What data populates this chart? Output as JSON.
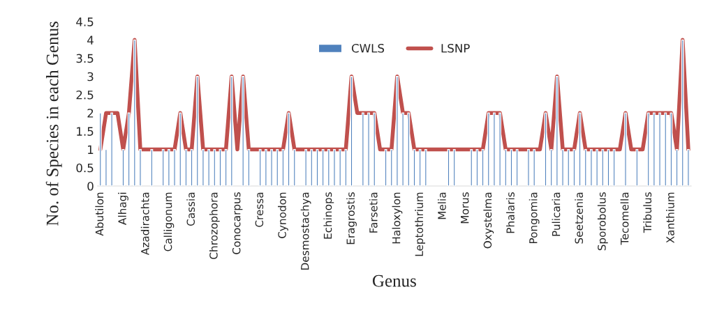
{
  "chart_data": {
    "type": "bar",
    "xlabel": "Genus",
    "ylabel": "No. of Species in each Genus",
    "categories": [
      "Abutilon",
      null,
      null,
      null,
      "Alhagi",
      null,
      null,
      null,
      "Azadirachta",
      null,
      null,
      null,
      "Calligonum",
      null,
      null,
      null,
      "Cassia",
      null,
      null,
      null,
      "Chrozophora",
      null,
      null,
      null,
      "Conocarpus",
      null,
      null,
      null,
      "Cressa",
      null,
      null,
      null,
      "Cynodon",
      null,
      null,
      null,
      "Desmostachya",
      null,
      null,
      null,
      "Echinops",
      null,
      null,
      null,
      "Eragrostis",
      null,
      null,
      null,
      "Farsetia",
      null,
      null,
      null,
      "Haloxylon",
      null,
      null,
      null,
      "Leptothrium",
      null,
      null,
      null,
      "Melia",
      null,
      null,
      null,
      "Morus",
      null,
      null,
      null,
      "Oxystelma",
      null,
      null,
      null,
      "Phalaris",
      null,
      null,
      null,
      "Pongomia",
      null,
      null,
      null,
      "Pulicaria",
      null,
      null,
      null,
      "Seetzenia",
      null,
      null,
      null,
      "Sporobolus",
      null,
      null,
      null,
      "Tecomella",
      null,
      null,
      null,
      "Tribulus",
      null,
      null,
      null,
      "Xanthium",
      null,
      null,
      null
    ],
    "series": [
      {
        "name": "CWLS",
        "color": "#4f81bd",
        "values": [
          2,
          1,
          2,
          null,
          1,
          2,
          4,
          1,
          null,
          1,
          null,
          1,
          1,
          1,
          2,
          1,
          1,
          3,
          1,
          1,
          1,
          1,
          1,
          3,
          null,
          3,
          1,
          null,
          1,
          1,
          1,
          1,
          1,
          2,
          1,
          null,
          1,
          1,
          1,
          1,
          1,
          1,
          1,
          1,
          3,
          null,
          2,
          2,
          2,
          null,
          1,
          1,
          3,
          2,
          2,
          1,
          1,
          1,
          null,
          null,
          null,
          1,
          1,
          null,
          null,
          1,
          1,
          1,
          2,
          2,
          2,
          1,
          1,
          1,
          null,
          1,
          1,
          null,
          2,
          1,
          3,
          1,
          1,
          1,
          2,
          1,
          1,
          1,
          1,
          1,
          1,
          null,
          2,
          null,
          1,
          null,
          2,
          2,
          2,
          2,
          2,
          1,
          4,
          1
        ]
      },
      {
        "name": "LSNP",
        "type": "line",
        "color": "#c0504d",
        "values": [
          1,
          2,
          2,
          2,
          1,
          2,
          4,
          1,
          1,
          1,
          1,
          1,
          1,
          1,
          2,
          1,
          1,
          3,
          1,
          1,
          1,
          1,
          1,
          3,
          1,
          3,
          1,
          1,
          1,
          1,
          1,
          1,
          1,
          2,
          1,
          1,
          1,
          1,
          1,
          1,
          1,
          1,
          1,
          1,
          3,
          2,
          2,
          2,
          2,
          1,
          1,
          1,
          3,
          2,
          2,
          1,
          1,
          1,
          1,
          1,
          1,
          1,
          1,
          1,
          1,
          1,
          1,
          1,
          2,
          2,
          2,
          1,
          1,
          1,
          1,
          1,
          1,
          1,
          2,
          1,
          3,
          1,
          1,
          1,
          2,
          1,
          1,
          1,
          1,
          1,
          1,
          1,
          2,
          1,
          1,
          1,
          2,
          2,
          2,
          2,
          2,
          1,
          4,
          1
        ]
      }
    ],
    "ylim": [
      0,
      4.5
    ],
    "yticks": [
      0,
      0.5,
      1,
      1.5,
      2,
      2.5,
      3,
      3.5,
      4,
      4.5
    ],
    "grid": false,
    "legend": "top"
  }
}
